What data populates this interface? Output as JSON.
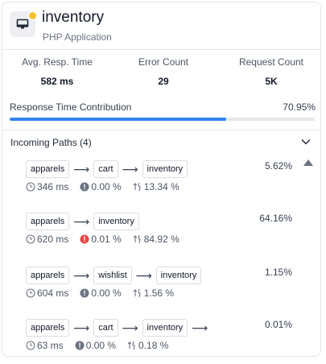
{
  "header": {
    "title": "inventory",
    "subtitle": "PHP Application",
    "status_color": "#f5c12b",
    "icon": "monitor-icon"
  },
  "metrics": [
    {
      "label": "Avg. Resp. Time",
      "value": "582 ms"
    },
    {
      "label": "Error Count",
      "value": "29"
    },
    {
      "label": "Request Count",
      "value": "5K"
    }
  ],
  "contribution": {
    "label": "Response Time Contribution",
    "value": "70.95%",
    "fraction": 0.7095,
    "bar_color": "#2f86f6"
  },
  "paths": {
    "heading": "Incoming Paths (4)",
    "items": [
      {
        "nodes": [
          "apparels",
          "cart",
          "inventory"
        ],
        "trailing_arrow": false,
        "percent": "5.62%",
        "time": "346 ms",
        "error": "0.00 %",
        "error_color": "#6b7280",
        "throughput": "13.34 %"
      },
      {
        "nodes": [
          "apparels",
          "inventory"
        ],
        "trailing_arrow": false,
        "percent": "64.16%",
        "time": "620 ms",
        "error": "0.01 %",
        "error_color": "#ef4444",
        "throughput": "84.92 %"
      },
      {
        "nodes": [
          "apparels",
          "wishlist",
          "inventory"
        ],
        "trailing_arrow": false,
        "percent": "1.15%",
        "time": "604 ms",
        "error": "0.00 %",
        "error_color": "#6b7280",
        "throughput": "1.56 %"
      },
      {
        "nodes": [
          "apparels",
          "cart",
          "inventory"
        ],
        "trailing_arrow": true,
        "percent": "0.01%",
        "time": "63 ms",
        "error": "0.00 %",
        "error_color": "#6b7280",
        "throughput": "0.18 %"
      }
    ]
  }
}
